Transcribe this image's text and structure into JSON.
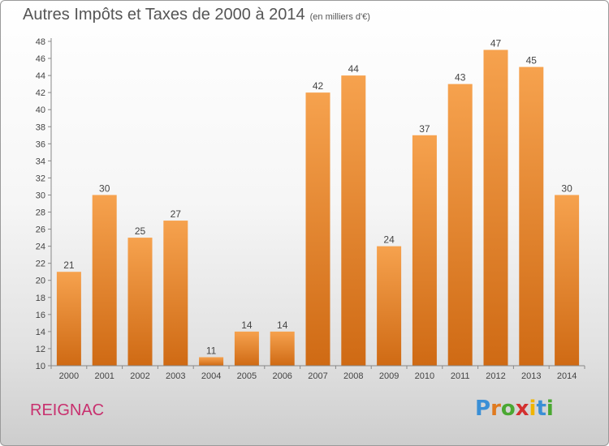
{
  "title": "Autres Impôts et Taxes de 2000 à 2014",
  "unit": "(en milliers d'€)",
  "commune": "REIGNAC",
  "logo": {
    "letters": [
      "P",
      "r",
      "o",
      "x",
      "i",
      "t",
      "i"
    ],
    "colors": [
      "#3a8fd6",
      "#e07a1f",
      "#4aa832",
      "#d32f2f",
      "#f0b400",
      "#3a8fd6",
      "#4aa832"
    ]
  },
  "colors": {
    "bar_top": "#f6a24e",
    "bar_bottom": "#cf6a14",
    "axis": "#888888",
    "text": "#444444",
    "brand": "#c8306e"
  },
  "chart_data": {
    "type": "bar",
    "categories": [
      "2000",
      "2001",
      "2002",
      "2003",
      "2004",
      "2005",
      "2006",
      "2007",
      "2008",
      "2009",
      "2010",
      "2011",
      "2012",
      "2013",
      "2014"
    ],
    "values": [
      21,
      30,
      25,
      27,
      11,
      14,
      14,
      42,
      44,
      24,
      37,
      43,
      47,
      45,
      30
    ],
    "ylim": [
      10,
      48
    ],
    "yticks": [
      10,
      12,
      14,
      16,
      18,
      20,
      22,
      24,
      26,
      28,
      30,
      32,
      34,
      36,
      38,
      40,
      42,
      44,
      46,
      48
    ],
    "title": "Autres Impôts et Taxes de 2000 à 2014",
    "xlabel": "",
    "ylabel": ""
  }
}
